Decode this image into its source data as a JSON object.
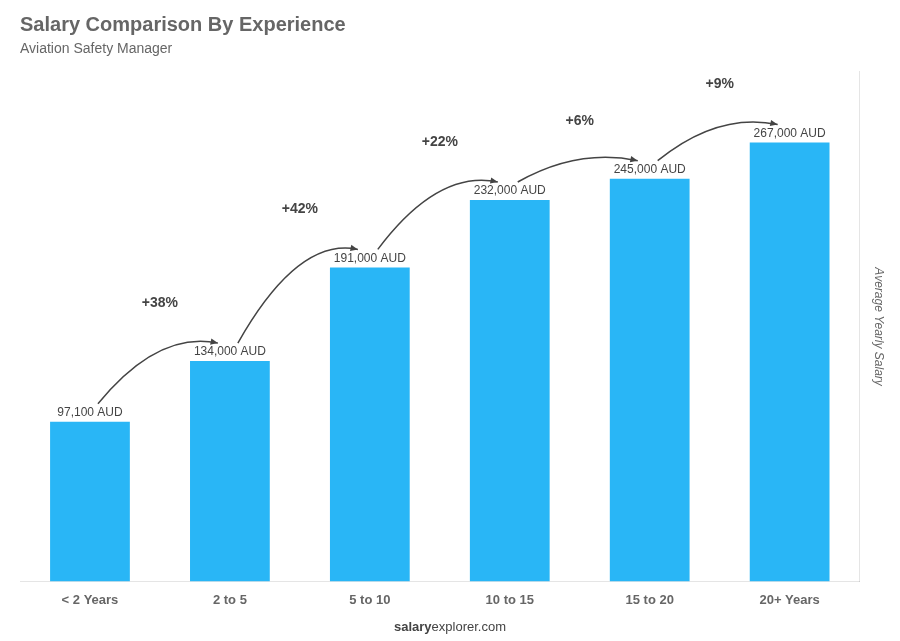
{
  "chart_data": {
    "type": "bar",
    "title": "Salary Comparison By Experience",
    "subtitle": "Aviation Safety Manager",
    "ylabel": "Average Yearly Salary",
    "categories": [
      "< 2 Years",
      "2 to 5",
      "5 to 10",
      "10 to 15",
      "15 to 20",
      "20+ Years"
    ],
    "values": [
      97100,
      134000,
      191000,
      232000,
      245000,
      267000
    ],
    "value_labels": [
      "97,100 AUD",
      "134,000 AUD",
      "191,000 AUD",
      "232,000 AUD",
      "245,000 AUD",
      "267,000 AUD"
    ],
    "data_labels": true,
    "color": "#29B6F6",
    "ylim": [
      0,
      310000
    ],
    "grid": false,
    "tick_labels": "x",
    "annotations": [
      "+38%",
      "+42%",
      "+22%",
      "+6%",
      "+9%"
    ],
    "footer": [
      "salary",
      "explorer.com"
    ]
  }
}
